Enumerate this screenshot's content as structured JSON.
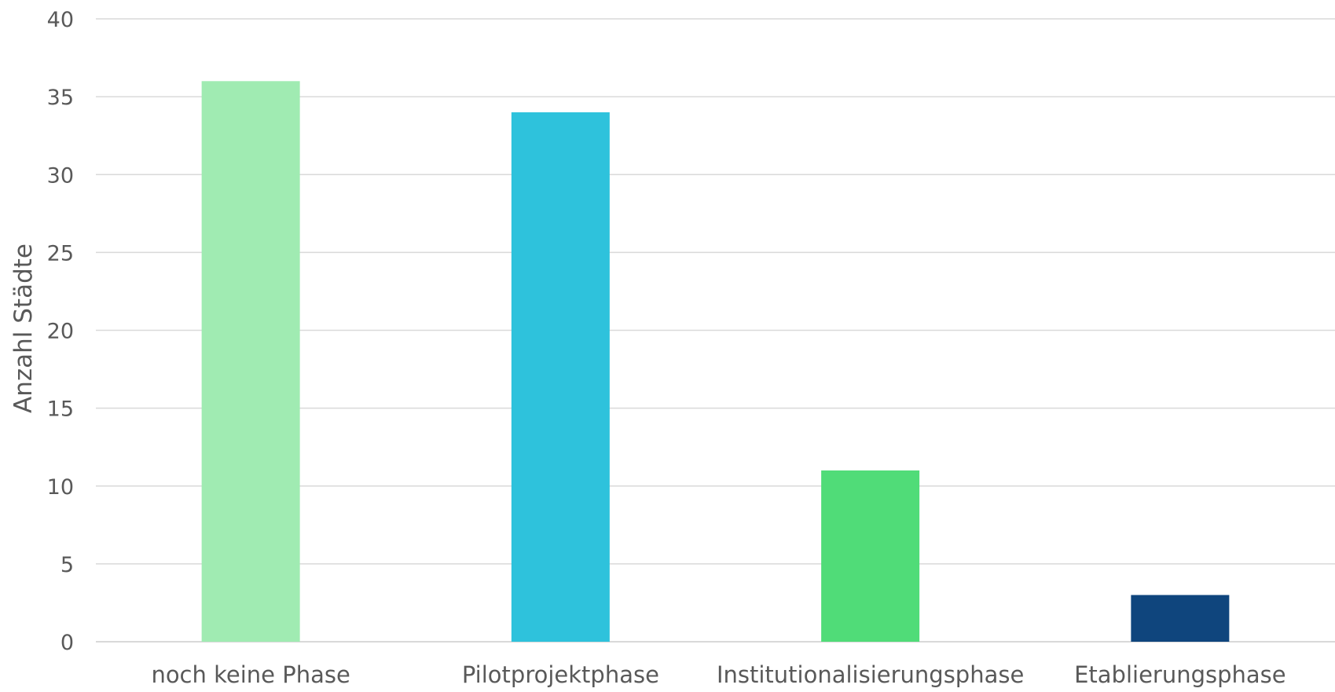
{
  "chart_data": {
    "type": "bar",
    "title": "",
    "xlabel": "",
    "ylabel": "Anzahl Städte",
    "categories": [
      "noch keine Phase",
      "Pilotprojektphase",
      "Institutionalisierungsphase",
      "Etablierungsphase"
    ],
    "values": [
      36,
      34,
      11,
      3
    ],
    "bar_colors": [
      "#a0ebb2",
      "#2ec2dc",
      "#50dc78",
      "#0f457d"
    ],
    "ylim": [
      0,
      40
    ],
    "yticks": [
      0,
      5,
      10,
      15,
      20,
      25,
      30,
      35,
      40
    ],
    "grid": true,
    "gridline_color": "#d9d9d9",
    "legend": "none"
  }
}
